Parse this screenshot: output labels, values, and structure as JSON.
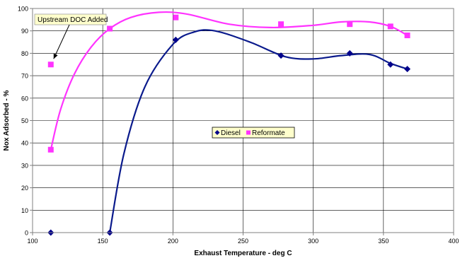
{
  "chart_data": {
    "type": "scatter",
    "xlabel": "Exhaust Temperature - deg C",
    "ylabel": "Nox Adsorbed - %",
    "xlim": [
      100,
      400
    ],
    "ylim": [
      0,
      100
    ],
    "xticks": [
      100,
      150,
      200,
      250,
      300,
      350,
      400
    ],
    "yticks": [
      0,
      10,
      20,
      30,
      40,
      50,
      60,
      70,
      80,
      90,
      100
    ],
    "grid": true,
    "legend_position": "center",
    "series": [
      {
        "name": "Diesel",
        "marker": "diamond",
        "color": "#00008B",
        "x": [
          113,
          155,
          202,
          277,
          326,
          355,
          367
        ],
        "y": [
          0,
          0,
          86,
          79,
          80,
          75,
          73
        ]
      },
      {
        "name": "Reformate",
        "marker": "square",
        "color": "#FF33FF",
        "x": [
          113,
          113,
          155,
          202,
          277,
          326,
          355,
          367
        ],
        "y": [
          37,
          75,
          91,
          96,
          93,
          93,
          92,
          88
        ]
      }
    ],
    "trendlines": [
      {
        "series": "Diesel",
        "color": "#0A1A8C",
        "points": [
          [
            155,
            0
          ],
          [
            165,
            35
          ],
          [
            180,
            65
          ],
          [
            200,
            84
          ],
          [
            215,
            89.5
          ],
          [
            230,
            90
          ],
          [
            255,
            85
          ],
          [
            280,
            78.5
          ],
          [
            300,
            77.5
          ],
          [
            320,
            79
          ],
          [
            340,
            79.5
          ],
          [
            355,
            75.5
          ],
          [
            367,
            73
          ]
        ]
      },
      {
        "series": "Reformate",
        "color": "#FF33FF",
        "points": [
          [
            113,
            37
          ],
          [
            120,
            55
          ],
          [
            130,
            71
          ],
          [
            142,
            83
          ],
          [
            155,
            91
          ],
          [
            170,
            96
          ],
          [
            190,
            98.3
          ],
          [
            210,
            97.5
          ],
          [
            240,
            93
          ],
          [
            270,
            91.5
          ],
          [
            300,
            92.5
          ],
          [
            320,
            94
          ],
          [
            340,
            94
          ],
          [
            355,
            92
          ],
          [
            367,
            88
          ]
        ]
      }
    ],
    "annotation": {
      "text": "Upstream DOC Added",
      "target": [
        113,
        75
      ]
    }
  }
}
